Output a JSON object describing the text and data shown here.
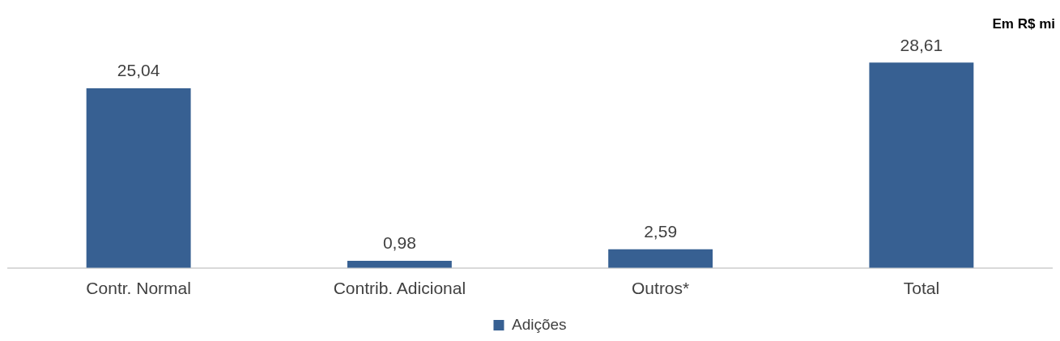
{
  "chart_data": {
    "type": "bar",
    "categories": [
      "Contr. Normal",
      "Contrib. Adicional",
      "Outros*",
      "Total"
    ],
    "series": [
      {
        "name": "Adições",
        "color": "#376092",
        "values": [
          25.04,
          0.98,
          2.59,
          28.61
        ],
        "value_labels": [
          "25,04",
          "0,98",
          "2,59",
          "28,61"
        ]
      }
    ],
    "legend": "bottom",
    "annotations": [
      "Em R$ mi"
    ]
  }
}
